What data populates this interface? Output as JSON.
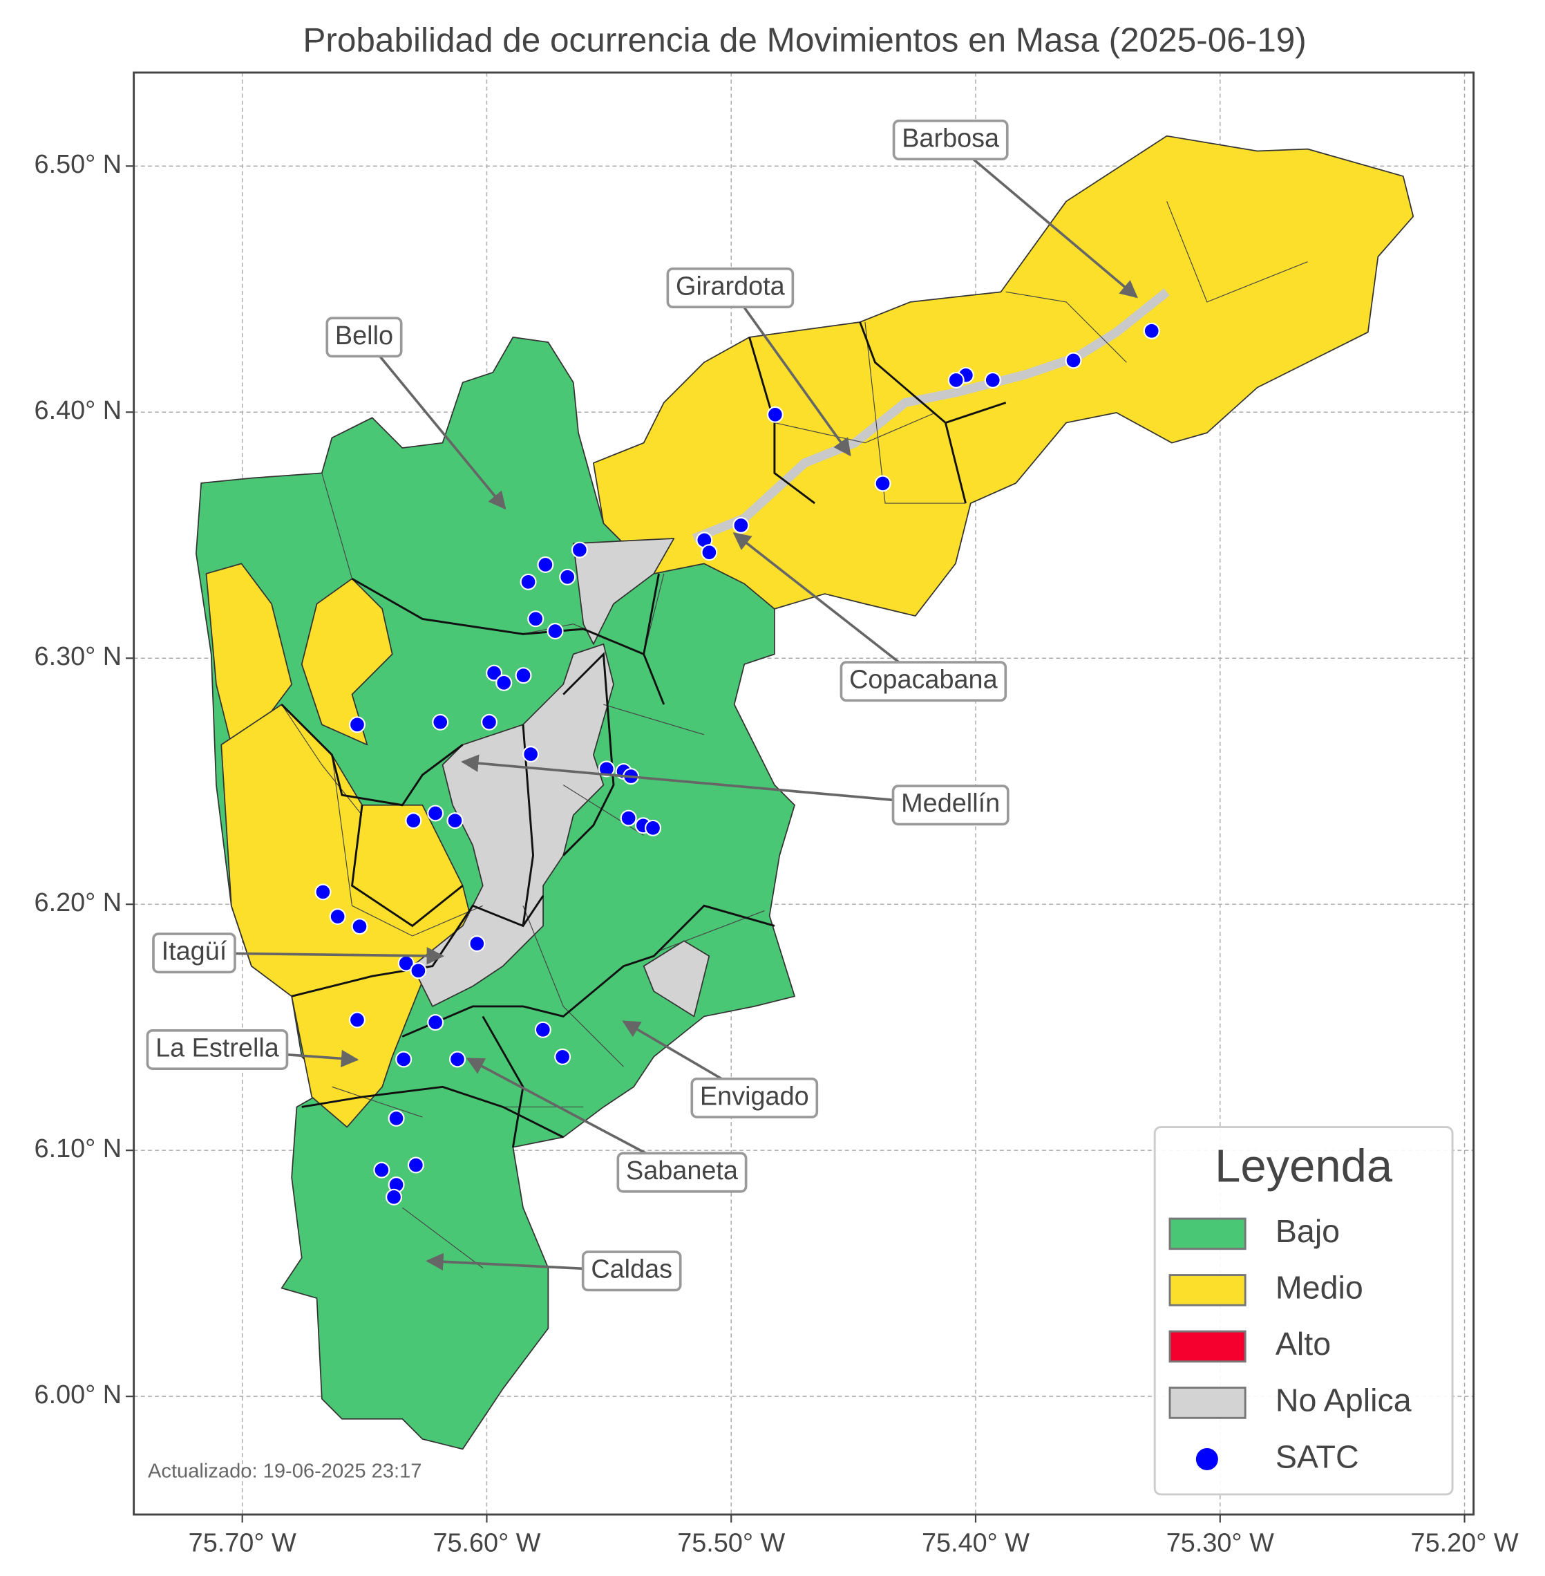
{
  "map": {
    "title": "Probabilidad de ocurrencia de Movimientos en Masa (2025-06-19)",
    "xlim": [
      -75.7444,
      -75.1963
    ],
    "ylim": [
      5.952,
      6.538
    ],
    "xticks": [
      {
        "value": -75.7,
        "label": "75.70° W"
      },
      {
        "value": -75.6,
        "label": "75.60° W"
      },
      {
        "value": -75.5,
        "label": "75.50° W"
      },
      {
        "value": -75.4,
        "label": "75.40° W"
      },
      {
        "value": -75.3,
        "label": "75.30° W"
      },
      {
        "value": -75.2,
        "label": "75.20° W"
      }
    ],
    "yticks": [
      {
        "value": 6.0,
        "label": "6.00° N"
      },
      {
        "value": 6.1,
        "label": "6.10° N"
      },
      {
        "value": 6.2,
        "label": "6.20° N"
      },
      {
        "value": 6.3,
        "label": "6.30° N"
      },
      {
        "value": 6.4,
        "label": "6.40° N"
      },
      {
        "value": 6.5,
        "label": "6.50° N"
      }
    ],
    "grid": true,
    "annotations": [
      "Barbosa",
      "Girardota",
      "Bello",
      "Copacabana",
      "Medellín",
      "Itagüí",
      "La Estrella",
      "Envigado",
      "Sabaneta",
      "Caldas"
    ],
    "legend": {
      "title": "Leyenda",
      "position": "lower right",
      "entries": [
        {
          "name": "Bajo",
          "color": "#4ac775"
        },
        {
          "name": "Medio",
          "color": "#fbdf2a"
        },
        {
          "name": "Alto",
          "color": "#f5002e"
        },
        {
          "name": "No Aplica",
          "color": "#d3d3d3"
        },
        {
          "name": "SATC",
          "color": "#0000ff"
        }
      ]
    },
    "satc": {
      "lon": [
        -75.328,
        -75.36,
        -75.393,
        -75.404,
        -75.408,
        -75.482,
        -75.438,
        -75.496,
        -75.511,
        -75.509,
        -75.562,
        -75.576,
        -75.567,
        -75.583,
        -75.58,
        -75.572,
        -75.597,
        -75.593,
        -75.585,
        -75.619,
        -75.599,
        -75.653,
        -75.582,
        -75.551,
        -75.544,
        -75.541,
        -75.542,
        -75.536,
        -75.532,
        -75.621,
        -75.63,
        -75.613,
        -75.667,
        -75.661,
        -75.652,
        -75.604,
        -75.633,
        -75.628,
        -75.653,
        -75.621,
        -75.577,
        -75.569,
        -75.634,
        -75.612,
        -75.637,
        -75.643,
        -75.629,
        -75.637,
        -75.638
      ],
      "lat": [
        6.433,
        6.421,
        6.413,
        6.415,
        6.413,
        6.399,
        6.371,
        6.354,
        6.348,
        6.343,
        6.344,
        6.338,
        6.333,
        6.331,
        6.316,
        6.311,
        6.294,
        6.29,
        6.293,
        6.274,
        6.274,
        6.273,
        6.261,
        6.255,
        6.254,
        6.252,
        6.235,
        6.232,
        6.231,
        6.237,
        6.234,
        6.234,
        6.205,
        6.195,
        6.191,
        6.184,
        6.176,
        6.173,
        6.153,
        6.152,
        6.149,
        6.138,
        6.137,
        6.137,
        6.113,
        6.092,
        6.094,
        6.086,
        6.081
      ]
    },
    "footnote": "Actualizado: 19-06-2025 23:17"
  }
}
